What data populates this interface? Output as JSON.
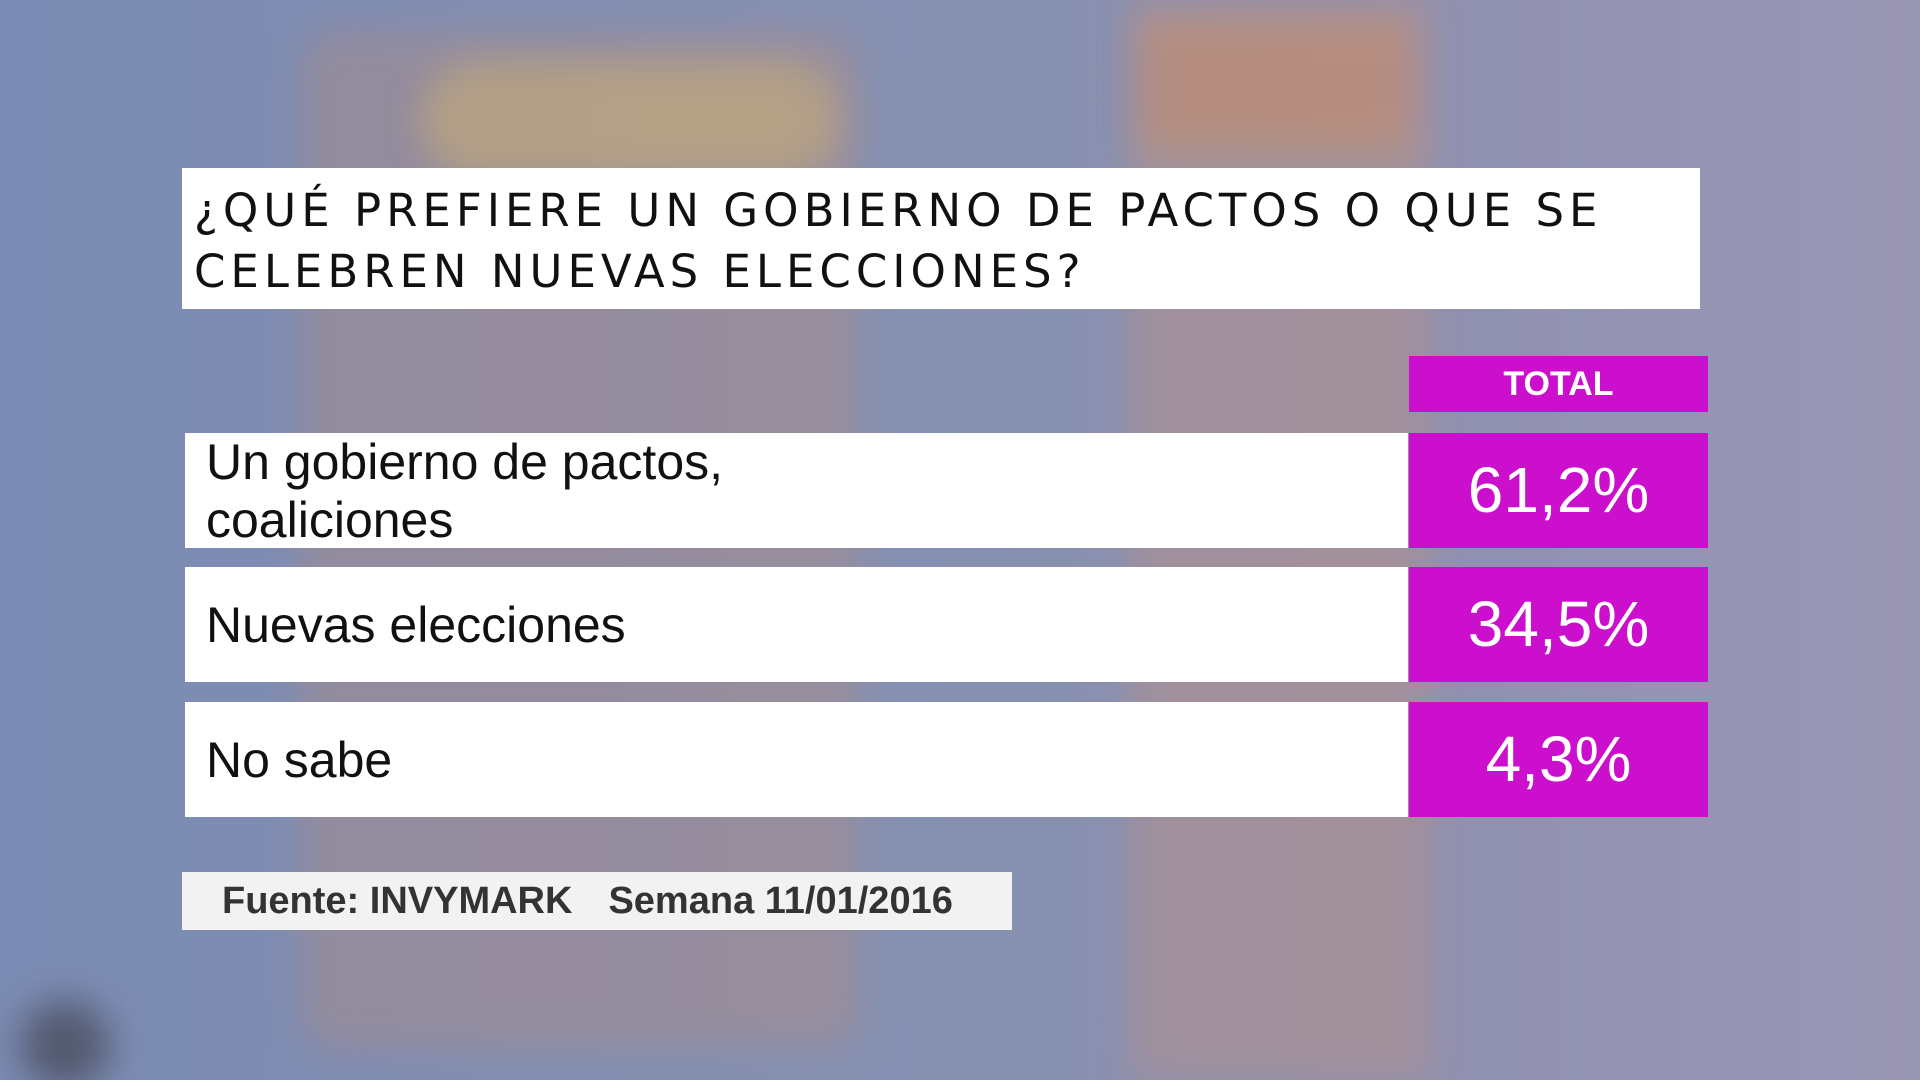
{
  "chart_data": {
    "type": "table",
    "title": "¿QUÉ PREFIERE UN GOBIERNO DE PACTOS O QUE SE\nCELEBREN NUEVAS ELECCIONES?",
    "column_header": "TOTAL",
    "rows": [
      {
        "label": "Un gobierno de pactos,\ncoaliciones",
        "value": 61.2,
        "display": "61,2%"
      },
      {
        "label": "Nuevas elecciones",
        "value": 34.5,
        "display": "34,5%"
      },
      {
        "label": "No sabe",
        "value": 4.3,
        "display": "4,3%"
      }
    ]
  },
  "footer": {
    "source": "Fuente: INVYMARK",
    "week": "Semana 11/01/2016"
  },
  "colors": {
    "accent": "#cc0fcc",
    "panel": "#ffffff",
    "text": "#111111"
  }
}
